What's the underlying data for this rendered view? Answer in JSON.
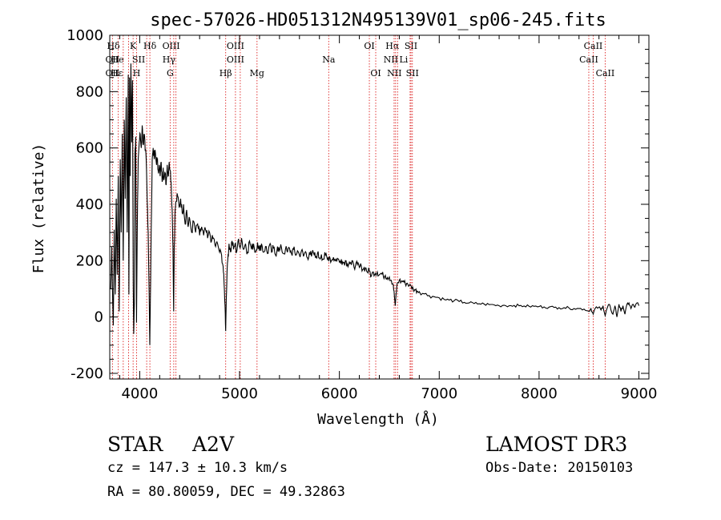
{
  "chart_data": {
    "type": "line",
    "title": "spec-57026-HD051312N495139V01_sp06-245.fits",
    "xlabel": "Wavelength (Å)",
    "ylabel": "Flux (relative)",
    "xlim": [
      3700,
      9100
    ],
    "ylim": [
      -220,
      1000
    ],
    "xticks": [
      4000,
      5000,
      6000,
      7000,
      8000,
      9000
    ],
    "yticks": [
      -200,
      0,
      200,
      400,
      600,
      800,
      1000
    ],
    "grid": false,
    "series": [
      {
        "name": "spectrum",
        "color": "#000000",
        "points": [
          [
            3710,
            100
          ],
          [
            3720,
            250
          ],
          [
            3735,
            -30
          ],
          [
            3745,
            310
          ],
          [
            3755,
            80
          ],
          [
            3765,
            420
          ],
          [
            3775,
            150
          ],
          [
            3785,
            500
          ],
          [
            3795,
            20
          ],
          [
            3805,
            560
          ],
          [
            3815,
            300
          ],
          [
            3825,
            650
          ],
          [
            3835,
            200
          ],
          [
            3845,
            700
          ],
          [
            3855,
            420
          ],
          [
            3865,
            780
          ],
          [
            3875,
            300
          ],
          [
            3885,
            860
          ],
          [
            3892,
            80
          ],
          [
            3898,
            850
          ],
          [
            3905,
            500
          ],
          [
            3912,
            900
          ],
          [
            3920,
            620
          ],
          [
            3928,
            840
          ],
          [
            3935,
            120
          ],
          [
            3940,
            -60
          ],
          [
            3946,
            50
          ],
          [
            3952,
            580
          ],
          [
            3960,
            640
          ],
          [
            3968,
            -20
          ],
          [
            3975,
            300
          ],
          [
            3985,
            560
          ],
          [
            3995,
            620
          ],
          [
            4005,
            650
          ],
          [
            4015,
            600
          ],
          [
            4025,
            680
          ],
          [
            4035,
            610
          ],
          [
            4045,
            650
          ],
          [
            4055,
            590
          ],
          [
            4065,
            560
          ],
          [
            4075,
            420
          ],
          [
            4085,
            300
          ],
          [
            4095,
            80
          ],
          [
            4101,
            -100
          ],
          [
            4107,
            60
          ],
          [
            4115,
            300
          ],
          [
            4125,
            560
          ],
          [
            4135,
            600
          ],
          [
            4145,
            560
          ],
          [
            4155,
            590
          ],
          [
            4165,
            550
          ],
          [
            4175,
            560
          ],
          [
            4185,
            520
          ],
          [
            4195,
            540
          ],
          [
            4205,
            500
          ],
          [
            4215,
            550
          ],
          [
            4225,
            480
          ],
          [
            4235,
            530
          ],
          [
            4245,
            490
          ],
          [
            4255,
            510
          ],
          [
            4265,
            470
          ],
          [
            4275,
            540
          ],
          [
            4285,
            500
          ],
          [
            4295,
            550
          ],
          [
            4305,
            520
          ],
          [
            4315,
            480
          ],
          [
            4325,
            380
          ],
          [
            4333,
            250
          ],
          [
            4340,
            20
          ],
          [
            4346,
            250
          ],
          [
            4355,
            380
          ],
          [
            4365,
            410
          ],
          [
            4380,
            430
          ],
          [
            4395,
            390
          ],
          [
            4410,
            420
          ],
          [
            4425,
            370
          ],
          [
            4440,
            400
          ],
          [
            4455,
            330
          ],
          [
            4470,
            380
          ],
          [
            4485,
            320
          ],
          [
            4500,
            350
          ],
          [
            4520,
            300
          ],
          [
            4540,
            340
          ],
          [
            4560,
            300
          ],
          [
            4580,
            330
          ],
          [
            4600,
            290
          ],
          [
            4620,
            320
          ],
          [
            4640,
            290
          ],
          [
            4660,
            310
          ],
          [
            4680,
            280
          ],
          [
            4700,
            300
          ],
          [
            4720,
            270
          ],
          [
            4740,
            280
          ],
          [
            4760,
            250
          ],
          [
            4780,
            260
          ],
          [
            4800,
            230
          ],
          [
            4820,
            220
          ],
          [
            4835,
            180
          ],
          [
            4845,
            120
          ],
          [
            4855,
            40
          ],
          [
            4861,
            -50
          ],
          [
            4867,
            60
          ],
          [
            4875,
            160
          ],
          [
            4885,
            220
          ],
          [
            4895,
            260
          ],
          [
            4910,
            230
          ],
          [
            4925,
            270
          ],
          [
            4940,
            240
          ],
          [
            4955,
            260
          ],
          [
            4970,
            230
          ],
          [
            4985,
            270
          ],
          [
            5000,
            250
          ],
          [
            5020,
            280
          ],
          [
            5040,
            240
          ],
          [
            5060,
            260
          ],
          [
            5080,
            230
          ],
          [
            5100,
            270
          ],
          [
            5120,
            240
          ],
          [
            5140,
            260
          ],
          [
            5160,
            230
          ],
          [
            5180,
            265
          ],
          [
            5200,
            235
          ],
          [
            5220,
            260
          ],
          [
            5240,
            230
          ],
          [
            5260,
            250
          ],
          [
            5280,
            225
          ],
          [
            5300,
            255
          ],
          [
            5320,
            230
          ],
          [
            5340,
            245
          ],
          [
            5360,
            220
          ],
          [
            5380,
            250
          ],
          [
            5400,
            235
          ],
          [
            5420,
            245
          ],
          [
            5440,
            225
          ],
          [
            5460,
            240
          ],
          [
            5480,
            230
          ],
          [
            5500,
            245
          ],
          [
            5520,
            225
          ],
          [
            5540,
            240
          ],
          [
            5560,
            220
          ],
          [
            5580,
            235
          ],
          [
            5600,
            220
          ],
          [
            5620,
            235
          ],
          [
            5640,
            215
          ],
          [
            5660,
            232
          ],
          [
            5680,
            210
          ],
          [
            5700,
            230
          ],
          [
            5720,
            215
          ],
          [
            5740,
            228
          ],
          [
            5760,
            212
          ],
          [
            5780,
            225
          ],
          [
            5800,
            210
          ],
          [
            5820,
            222
          ],
          [
            5840,
            205
          ],
          [
            5860,
            220
          ],
          [
            5880,
            205
          ],
          [
            5900,
            215
          ],
          [
            5920,
            200
          ],
          [
            5940,
            212
          ],
          [
            5960,
            200
          ],
          [
            5980,
            208
          ],
          [
            6000,
            195
          ],
          [
            6020,
            205
          ],
          [
            6040,
            192
          ],
          [
            6060,
            200
          ],
          [
            6080,
            188
          ],
          [
            6100,
            195
          ],
          [
            6120,
            185
          ],
          [
            6140,
            190
          ],
          [
            6160,
            180
          ],
          [
            6180,
            186
          ],
          [
            6200,
            176
          ],
          [
            6220,
            180
          ],
          [
            6240,
            170
          ],
          [
            6260,
            175
          ],
          [
            6280,
            160
          ],
          [
            6300,
            165
          ],
          [
            6320,
            145
          ],
          [
            6340,
            160
          ],
          [
            6360,
            155
          ],
          [
            6380,
            160
          ],
          [
            6400,
            150
          ],
          [
            6420,
            155
          ],
          [
            6440,
            145
          ],
          [
            6460,
            148
          ],
          [
            6480,
            140
          ],
          [
            6500,
            142
          ],
          [
            6520,
            130
          ],
          [
            6540,
            115
          ],
          [
            6552,
            70
          ],
          [
            6560,
            40
          ],
          [
            6568,
            80
          ],
          [
            6580,
            120
          ],
          [
            6600,
            130
          ],
          [
            6620,
            125
          ],
          [
            6640,
            128
          ],
          [
            6660,
            118
          ],
          [
            6680,
            120
          ],
          [
            6700,
            112
          ],
          [
            6720,
            108
          ],
          [
            6740,
            100
          ],
          [
            6760,
            96
          ],
          [
            6780,
            92
          ],
          [
            6800,
            90
          ],
          [
            6850,
            82
          ],
          [
            6900,
            76
          ],
          [
            6950,
            72
          ],
          [
            7000,
            68
          ],
          [
            7050,
            62
          ],
          [
            7100,
            60
          ],
          [
            7150,
            58
          ],
          [
            7200,
            55
          ],
          [
            7250,
            52
          ],
          [
            7300,
            50
          ],
          [
            7350,
            48
          ],
          [
            7400,
            47
          ],
          [
            7450,
            46
          ],
          [
            7500,
            44
          ],
          [
            7550,
            43
          ],
          [
            7600,
            40
          ],
          [
            7650,
            42
          ],
          [
            7700,
            40
          ],
          [
            7750,
            41
          ],
          [
            7800,
            40
          ],
          [
            7850,
            39
          ],
          [
            7900,
            38
          ],
          [
            7950,
            38
          ],
          [
            8000,
            37
          ],
          [
            8050,
            36
          ],
          [
            8100,
            35
          ],
          [
            8150,
            34
          ],
          [
            8200,
            33
          ],
          [
            8250,
            33
          ],
          [
            8300,
            32
          ],
          [
            8350,
            30
          ],
          [
            8400,
            30
          ],
          [
            8450,
            28
          ],
          [
            8498,
            20
          ],
          [
            8520,
            30
          ],
          [
            8542,
            10
          ],
          [
            8560,
            30
          ],
          [
            8600,
            35
          ],
          [
            8620,
            25
          ],
          [
            8640,
            40
          ],
          [
            8662,
            5
          ],
          [
            8680,
            30
          ],
          [
            8700,
            45
          ],
          [
            8720,
            25
          ],
          [
            8740,
            10
          ],
          [
            8760,
            40
          ],
          [
            8780,
            0
          ],
          [
            8800,
            45
          ],
          [
            8820,
            20
          ],
          [
            8840,
            40
          ],
          [
            8860,
            10
          ],
          [
            8880,
            45
          ],
          [
            8900,
            50
          ],
          [
            8920,
            30
          ],
          [
            8940,
            45
          ],
          [
            8960,
            35
          ],
          [
            8980,
            50
          ],
          [
            9000,
            40
          ]
        ]
      }
    ],
    "lines": [
      {
        "label": "Hδ",
        "x": 3785,
        "row": 0,
        "dx": -6
      },
      {
        "label": "K",
        "x": 3934,
        "row": 0,
        "dx": 0
      },
      {
        "label": "Hδ",
        "x": 4102,
        "row": 0,
        "dx": 0
      },
      {
        "label": "OIII",
        "x": 4363,
        "row": 0,
        "dx": -6
      },
      {
        "label": "OIII",
        "x": 4959,
        "row": 0,
        "dx": 0
      },
      {
        "label": "OI",
        "x": 6300,
        "row": 0,
        "dx": 0
      },
      {
        "label": "Hα",
        "x": 6563,
        "row": 0,
        "dx": -4
      },
      {
        "label": "SII",
        "x": 6717,
        "row": 0,
        "dx": 0
      },
      {
        "label": "CaII",
        "x": 8542,
        "row": 0,
        "dx": 0
      },
      {
        "label": "OII",
        "x": 3727,
        "row": 1,
        "dx": 0
      },
      {
        "label": "He",
        "x": 3889,
        "row": 1,
        "dx": -14
      },
      {
        "label": "SII",
        "x": 4070,
        "row": 1,
        "dx": -10
      },
      {
        "label": "Hγ",
        "x": 4341,
        "row": 1,
        "dx": -6
      },
      {
        "label": "OIII",
        "x": 5007,
        "row": 1,
        "dx": -6
      },
      {
        "label": "Na",
        "x": 5893,
        "row": 1,
        "dx": 0
      },
      {
        "label": "NII",
        "x": 6548,
        "row": 1,
        "dx": -4
      },
      {
        "label": "Li",
        "x": 6708,
        "row": 1,
        "dx": -8
      },
      {
        "label": "CaII",
        "x": 8498,
        "row": 1,
        "dx": 0
      },
      {
        "label": "OII",
        "x": 3727,
        "row": 2,
        "dx": 0
      },
      {
        "label": "Hε",
        "x": 3835,
        "row": 2,
        "dx": -8
      },
      {
        "label": "H",
        "x": 3969,
        "row": 2,
        "dx": 0
      },
      {
        "label": "G",
        "x": 4305,
        "row": 2,
        "dx": 0
      },
      {
        "label": "Hβ",
        "x": 4861,
        "row": 2,
        "dx": 0
      },
      {
        "label": "Mg",
        "x": 5175,
        "row": 2,
        "dx": 0
      },
      {
        "label": "OI",
        "x": 6364,
        "row": 2,
        "dx": 0
      },
      {
        "label": "NII",
        "x": 6583,
        "row": 2,
        "dx": -4
      },
      {
        "label": "SII",
        "x": 6731,
        "row": 2,
        "dx": 0
      },
      {
        "label": "CaII",
        "x": 8662,
        "row": 2,
        "dx": 0
      }
    ]
  },
  "info": {
    "object_type": "STAR",
    "subclass": "A2V",
    "survey": "LAMOST DR3",
    "cz": "cz = 147.3 ± 10.3 km/s",
    "obs_date": "Obs-Date: 20150103",
    "coords": "RA =  80.80059, DEC =  49.32863"
  }
}
